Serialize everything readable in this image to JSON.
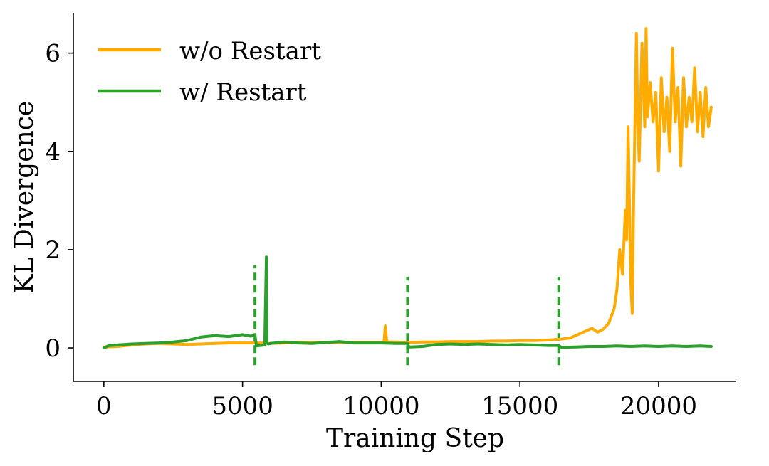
{
  "chart_data": {
    "type": "line",
    "title": "",
    "xlabel": "Training Step",
    "ylabel": "KL Divergence",
    "xlim": [
      -1100,
      22800
    ],
    "ylim": [
      -0.68,
      6.82
    ],
    "xticks": [
      0,
      5000,
      10000,
      15000,
      20000
    ],
    "xtick_labels": [
      "0",
      "5000",
      "10000",
      "15000",
      "20000"
    ],
    "yticks": [
      0,
      2,
      4,
      6
    ],
    "ytick_labels": [
      "0",
      "2",
      "4",
      "6"
    ],
    "grid": false,
    "legend": {
      "position": "top-left"
    },
    "series": [
      {
        "name": "w/o Restart",
        "color": "#ffab00",
        "style": "solid",
        "x": [
          0,
          500,
          1000,
          1500,
          2000,
          2500,
          3000,
          3500,
          4000,
          4500,
          5000,
          5500,
          6000,
          6500,
          7000,
          7500,
          8000,
          8500,
          9000,
          9500,
          10000,
          10100,
          10150,
          10200,
          10500,
          11000,
          11500,
          12000,
          12500,
          13000,
          13500,
          14000,
          14500,
          15000,
          15500,
          16000,
          16500,
          16800,
          17000,
          17200,
          17400,
          17600,
          17800,
          18000,
          18200,
          18400,
          18500,
          18600,
          18700,
          18800,
          18850,
          18900,
          19000,
          19050,
          19100,
          19200,
          19250,
          19300,
          19400,
          19500,
          19550,
          19600,
          19700,
          19800,
          19900,
          20000,
          20100,
          20200,
          20300,
          20400,
          20500,
          20600,
          20700,
          20800,
          20900,
          21000,
          21100,
          21200,
          21300,
          21400,
          21500,
          21600,
          21700,
          21800,
          21900
        ],
        "y": [
          0.02,
          0.03,
          0.06,
          0.08,
          0.09,
          0.08,
          0.07,
          0.08,
          0.09,
          0.1,
          0.1,
          0.1,
          0.09,
          0.1,
          0.11,
          0.11,
          0.11,
          0.11,
          0.11,
          0.11,
          0.11,
          0.12,
          0.45,
          0.12,
          0.12,
          0.11,
          0.12,
          0.12,
          0.13,
          0.13,
          0.13,
          0.14,
          0.14,
          0.15,
          0.15,
          0.16,
          0.18,
          0.2,
          0.25,
          0.3,
          0.35,
          0.4,
          0.32,
          0.38,
          0.5,
          0.8,
          1.2,
          2.0,
          1.5,
          2.8,
          2.2,
          4.5,
          1.3,
          0.7,
          3.0,
          6.4,
          4.6,
          3.8,
          6.2,
          4.5,
          6.5,
          4.7,
          5.4,
          4.6,
          5.2,
          3.6,
          5.5,
          4.4,
          5.1,
          4.0,
          6.1,
          4.6,
          5.3,
          3.7,
          5.5,
          4.5,
          5.1,
          4.6,
          5.7,
          4.4,
          5.2,
          4.3,
          5.3,
          4.5,
          4.9
        ]
      },
      {
        "name": "w/ Restart",
        "color": "#2ca02c",
        "style": "solid",
        "x": [
          0,
          200,
          500,
          1000,
          1500,
          2000,
          2500,
          3000,
          3500,
          4000,
          4500,
          5000,
          5300,
          5450,
          5500,
          5800,
          5860,
          5880,
          5920,
          6000,
          6500,
          7000,
          7500,
          8000,
          8500,
          9000,
          9500,
          10000,
          10500,
          10950,
          11000,
          11500,
          12000,
          12500,
          13000,
          13500,
          14000,
          14500,
          15000,
          15500,
          16000,
          16400,
          16500,
          17000,
          17500,
          18000,
          18500,
          19000,
          19500,
          20000,
          20500,
          21000,
          21500,
          21900
        ],
        "y": [
          0.0,
          0.05,
          0.06,
          0.08,
          0.09,
          0.1,
          0.12,
          0.15,
          0.22,
          0.25,
          0.23,
          0.27,
          0.24,
          0.26,
          0.04,
          0.06,
          1.85,
          0.1,
          0.08,
          0.09,
          0.12,
          0.1,
          0.09,
          0.11,
          0.13,
          0.1,
          0.1,
          0.1,
          0.09,
          0.09,
          0.02,
          0.03,
          0.07,
          0.08,
          0.07,
          0.08,
          0.07,
          0.06,
          0.07,
          0.06,
          0.05,
          0.05,
          0.01,
          0.02,
          0.03,
          0.03,
          0.04,
          0.03,
          0.04,
          0.03,
          0.04,
          0.03,
          0.04,
          0.03
        ]
      }
    ],
    "restart_markers": {
      "color": "#2ca02c",
      "style": "dashed",
      "x": [
        5450,
        10950,
        16400
      ],
      "y_ranges": [
        [
          -0.35,
          1.68
        ],
        [
          -0.35,
          1.45
        ],
        [
          -0.35,
          1.45
        ]
      ]
    }
  }
}
